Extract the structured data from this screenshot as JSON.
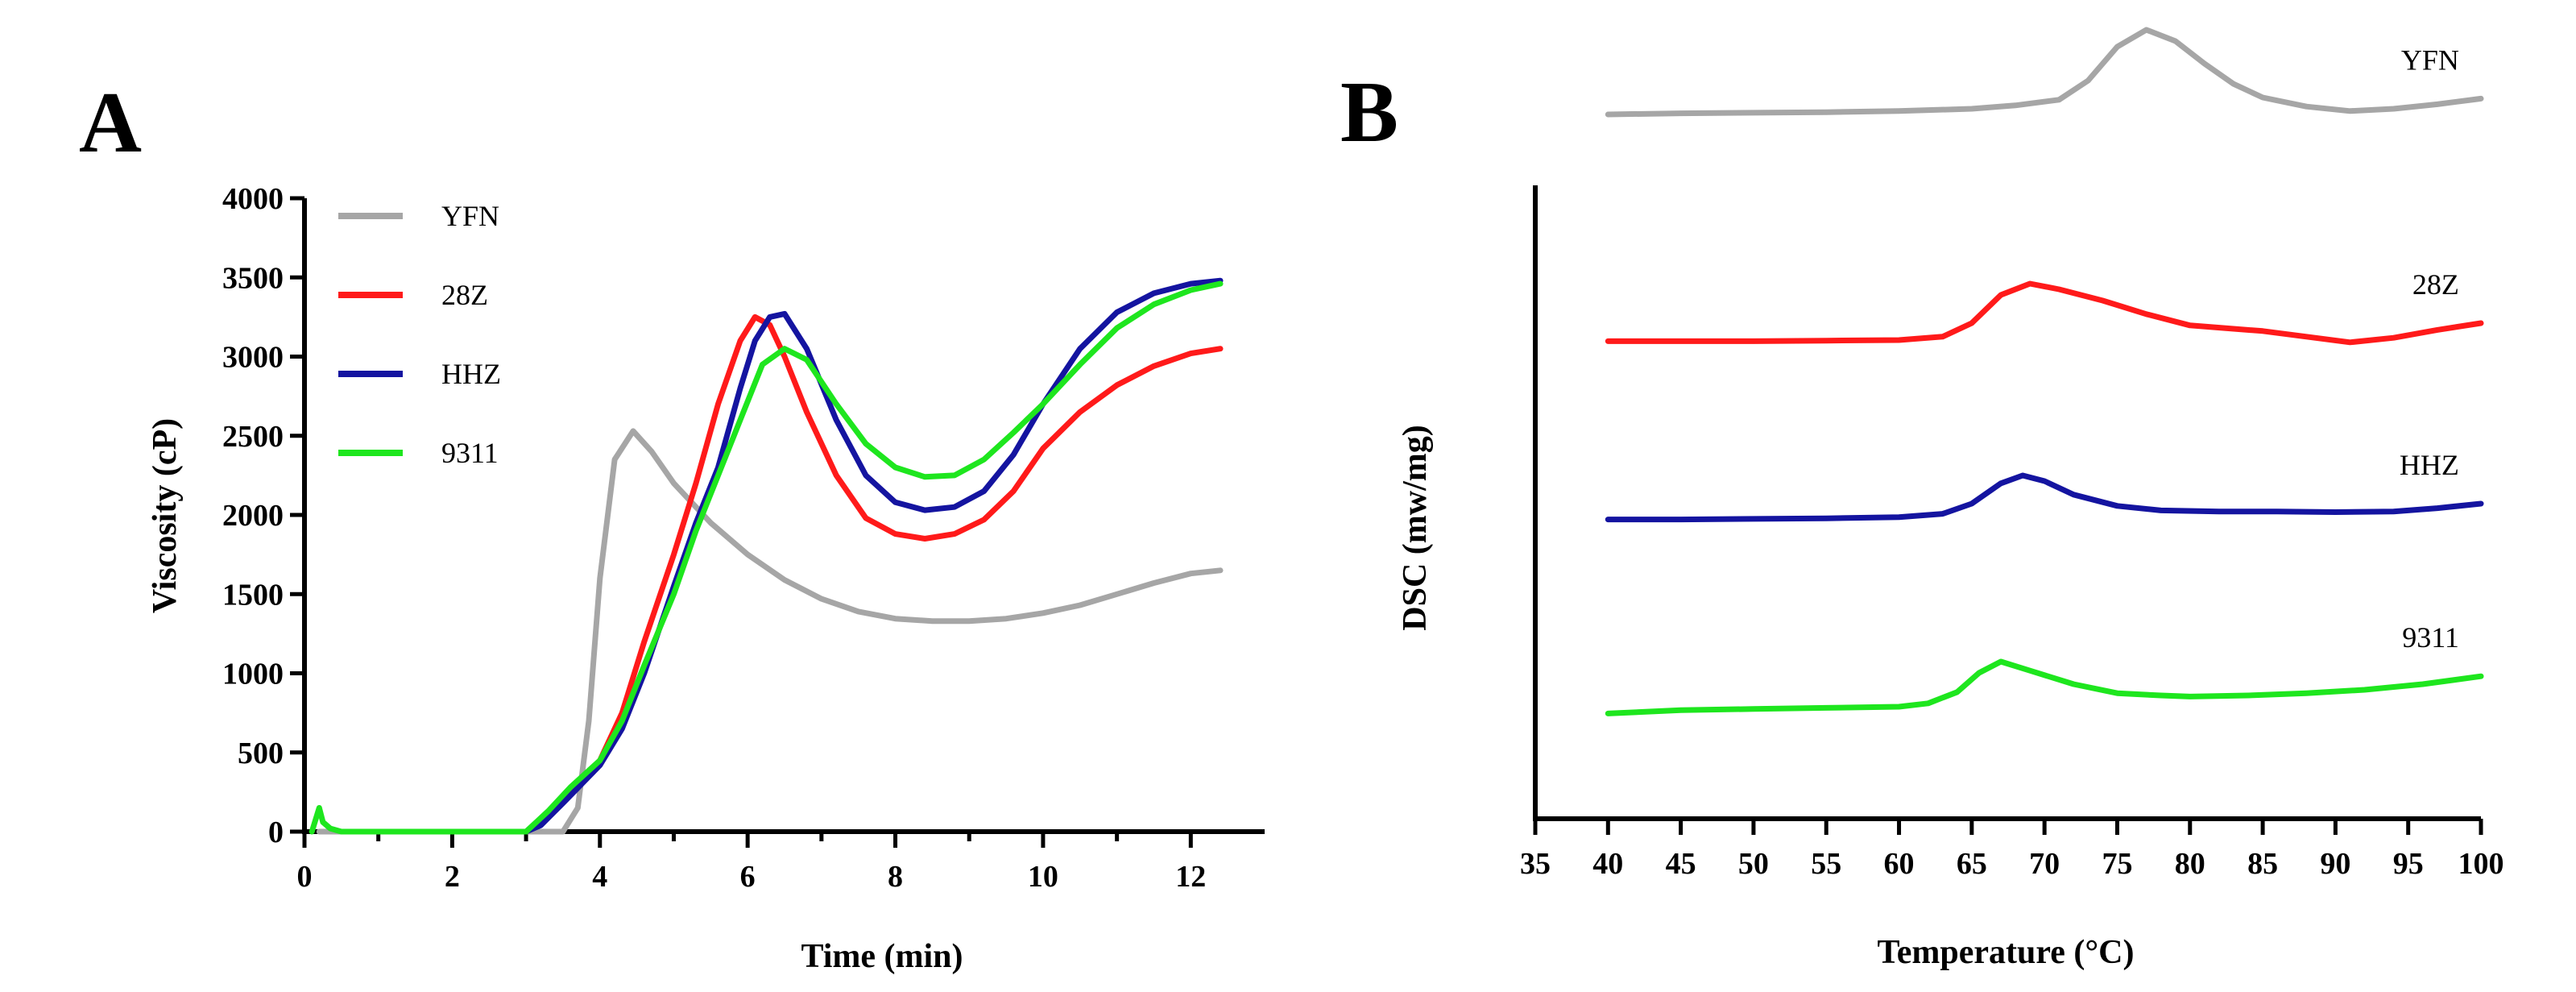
{
  "figure": {
    "panel_a_label": "A",
    "panel_b_label": "B"
  },
  "chart_data": [
    {
      "type": "line",
      "xlabel": "Time (min)",
      "ylabel": "Viscosity (cP)",
      "xlim": [
        0,
        13
      ],
      "ylim": [
        0,
        4000
      ],
      "xticks": [
        "0",
        "2",
        "4",
        "6",
        "8",
        "10",
        "12"
      ],
      "yticks": [
        "0",
        "500",
        "1000",
        "1500",
        "2000",
        "2500",
        "3000",
        "3500",
        "4000"
      ],
      "legend": "top-left",
      "series": [
        {
          "name": "YFN",
          "color": "#a6a6a6",
          "x": [
            0.2,
            0.6,
            1,
            2,
            3,
            3.5,
            3.7,
            3.85,
            4.0,
            4.2,
            4.45,
            4.7,
            5,
            5.5,
            6,
            6.5,
            7,
            7.5,
            8,
            8.5,
            9,
            9.5,
            10,
            10.5,
            11,
            11.5,
            12,
            12.4
          ],
          "y": [
            0,
            0,
            0,
            0,
            0,
            0,
            150,
            700,
            1600,
            2350,
            2530,
            2400,
            2200,
            1950,
            1750,
            1590,
            1470,
            1390,
            1345,
            1330,
            1330,
            1345,
            1380,
            1430,
            1500,
            1570,
            1630,
            1650
          ]
        },
        {
          "name": "28Z",
          "color": "#ff1a1a",
          "x": [
            2.6,
            3,
            3.2,
            3.5,
            4,
            4.3,
            4.6,
            5,
            5.3,
            5.6,
            5.9,
            6.1,
            6.3,
            6.5,
            6.8,
            7.2,
            7.6,
            8,
            8.4,
            8.8,
            9.2,
            9.6,
            10,
            10.5,
            11,
            11.5,
            12,
            12.4
          ],
          "y": [
            0,
            0,
            50,
            200,
            450,
            750,
            1200,
            1750,
            2200,
            2700,
            3100,
            3250,
            3200,
            3000,
            2650,
            2250,
            1980,
            1880,
            1850,
            1880,
            1970,
            2150,
            2420,
            2650,
            2820,
            2940,
            3020,
            3050
          ]
        },
        {
          "name": "HHZ",
          "color": "#1414a0",
          "x": [
            2.6,
            3,
            3.2,
            3.5,
            4,
            4.3,
            4.6,
            5,
            5.3,
            5.6,
            5.9,
            6.1,
            6.3,
            6.5,
            6.8,
            7.2,
            7.6,
            8,
            8.4,
            8.8,
            9.2,
            9.6,
            10,
            10.5,
            11,
            11.5,
            12,
            12.4
          ],
          "y": [
            0,
            0,
            40,
            180,
            420,
            650,
            1000,
            1550,
            1950,
            2300,
            2800,
            3100,
            3250,
            3270,
            3050,
            2600,
            2250,
            2080,
            2030,
            2050,
            2150,
            2380,
            2700,
            3050,
            3280,
            3400,
            3460,
            3480
          ]
        },
        {
          "name": "9311",
          "color": "#1ee61e",
          "x": [
            0.1,
            0.2,
            0.25,
            0.35,
            0.5,
            1,
            1.3,
            2.6,
            3,
            3.3,
            3.6,
            4,
            4.3,
            4.6,
            5,
            5.3,
            5.6,
            5.9,
            6.2,
            6.5,
            6.8,
            7.2,
            7.6,
            8,
            8.4,
            8.8,
            9.2,
            9.6,
            10,
            10.5,
            11,
            11.5,
            12,
            12.4
          ],
          "y": [
            0,
            150,
            60,
            20,
            0,
            0,
            0,
            0,
            0,
            130,
            280,
            450,
            700,
            1050,
            1500,
            1900,
            2250,
            2600,
            2950,
            3050,
            2980,
            2700,
            2450,
            2300,
            2240,
            2250,
            2350,
            2520,
            2700,
            2950,
            3180,
            3330,
            3420,
            3460
          ]
        }
      ]
    },
    {
      "type": "line",
      "xlabel": "Temperature (°C)",
      "ylabel": "DSC (mw/mg)",
      "xlim": [
        35,
        100
      ],
      "xticks": [
        "35",
        "40",
        "45",
        "50",
        "55",
        "60",
        "65",
        "70",
        "75",
        "80",
        "85",
        "90",
        "95",
        "100"
      ],
      "yticks": [],
      "y_units": "arbitrary, curves offset vertically",
      "series": [
        {
          "name": "YFN",
          "color": "#a6a6a6",
          "x": [
            40,
            45,
            50,
            55,
            60,
            65,
            68,
            71,
            73,
            75,
            77,
            79,
            81,
            83,
            85,
            88,
            91,
            94,
            97,
            100
          ],
          "y": [
            4.15,
            4.16,
            4.165,
            4.17,
            4.18,
            4.2,
            4.23,
            4.28,
            4.45,
            4.75,
            4.9,
            4.8,
            4.6,
            4.42,
            4.3,
            4.22,
            4.18,
            4.2,
            4.24,
            4.29
          ]
        },
        {
          "name": "28Z",
          "color": "#ff1a1a",
          "x": [
            40,
            45,
            50,
            55,
            60,
            63,
            65,
            67,
            69,
            71,
            74,
            77,
            80,
            85,
            88,
            91,
            94,
            97,
            100
          ],
          "y": [
            2.14,
            2.14,
            2.14,
            2.145,
            2.15,
            2.18,
            2.3,
            2.55,
            2.65,
            2.6,
            2.5,
            2.38,
            2.28,
            2.23,
            2.18,
            2.13,
            2.17,
            2.24,
            2.3
          ]
        },
        {
          "name": "HHZ",
          "color": "#1414a0",
          "x": [
            40,
            45,
            50,
            55,
            60,
            63,
            65,
            67,
            68.5,
            70,
            72,
            75,
            78,
            82,
            86,
            90,
            94,
            97,
            100
          ],
          "y": [
            0.56,
            0.56,
            0.565,
            0.57,
            0.58,
            0.61,
            0.7,
            0.88,
            0.95,
            0.9,
            0.78,
            0.68,
            0.64,
            0.63,
            0.63,
            0.625,
            0.63,
            0.66,
            0.7
          ]
        },
        {
          "name": "9311",
          "color": "#1ee61e",
          "x": [
            40,
            45,
            50,
            55,
            60,
            62,
            64,
            65.5,
            67,
            69,
            72,
            75,
            78,
            80,
            84,
            88,
            92,
            96,
            100
          ],
          "y": [
            -1.16,
            -1.13,
            -1.12,
            -1.11,
            -1.1,
            -1.07,
            -0.97,
            -0.8,
            -0.7,
            -0.78,
            -0.9,
            -0.98,
            -1.0,
            -1.01,
            -1.0,
            -0.98,
            -0.95,
            -0.9,
            -0.83
          ]
        }
      ]
    }
  ]
}
